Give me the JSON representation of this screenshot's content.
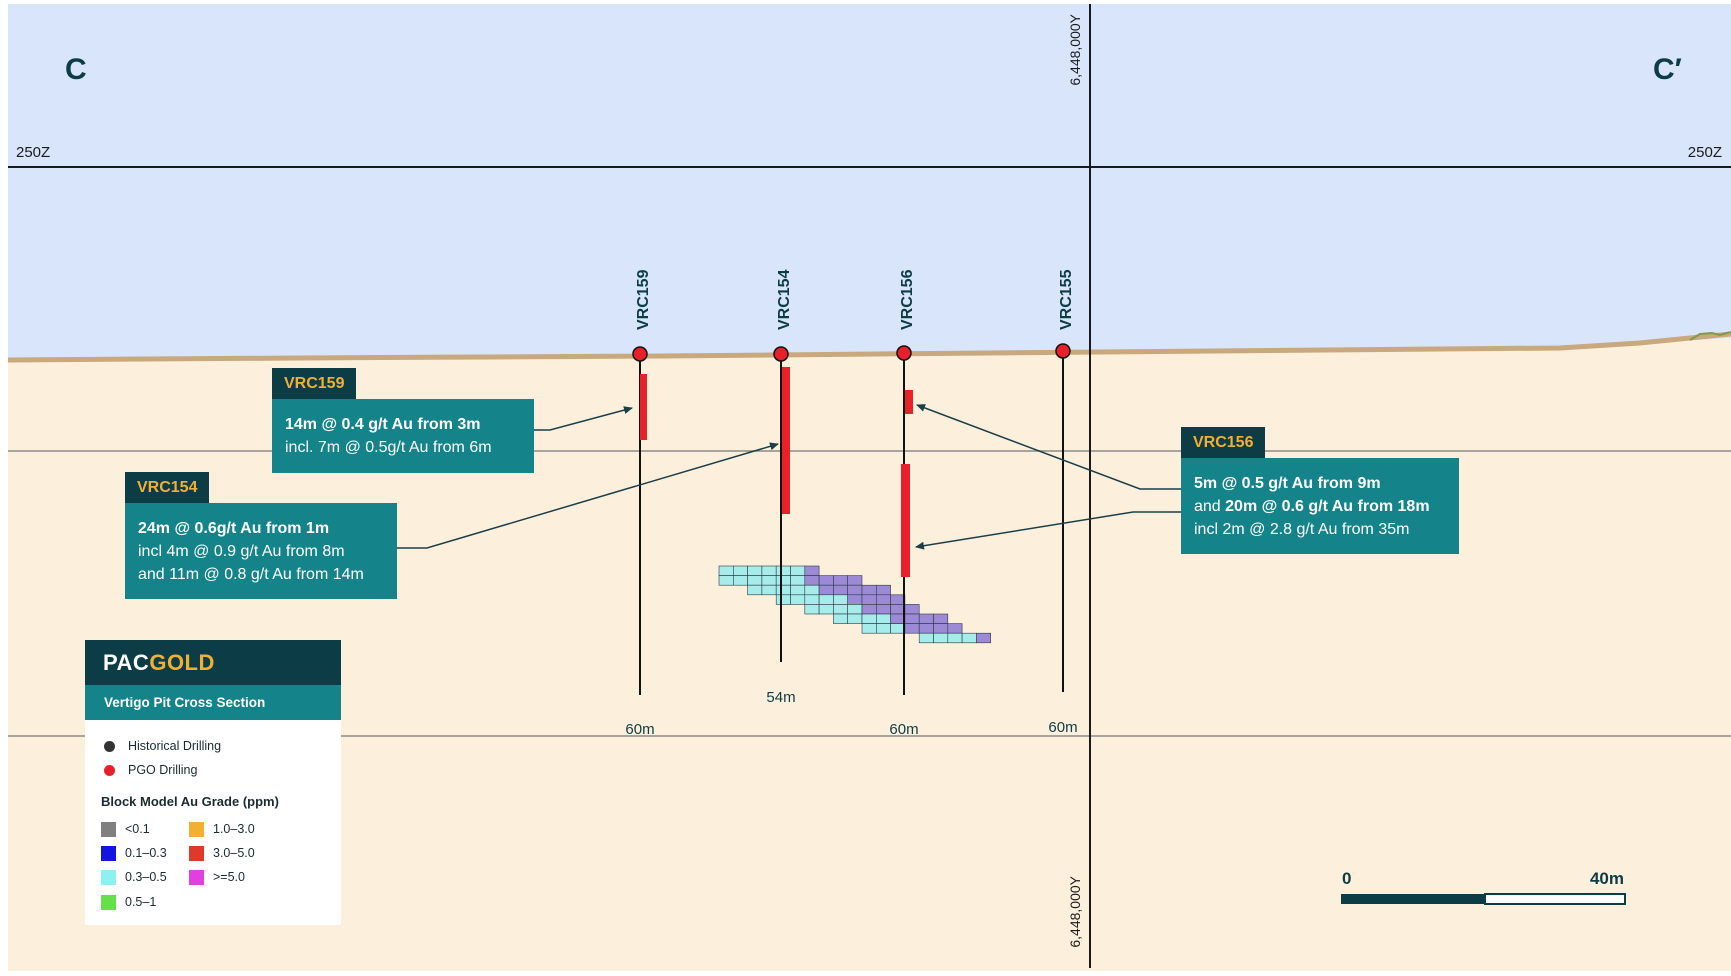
{
  "section": {
    "left_label": "C",
    "right_label": "C′",
    "rl_left": "250Z",
    "rl_right": "250Z",
    "northing_top": "6,448,000Y",
    "northing_bottom": "6,448,000Y"
  },
  "holes": [
    {
      "id": "VRC159",
      "type": "PGO Drilling",
      "depth_label": "60m"
    },
    {
      "id": "VRC154",
      "type": "PGO Drilling",
      "depth_label": "54m"
    },
    {
      "id": "VRC156",
      "type": "PGO Drilling",
      "depth_label": "60m"
    },
    {
      "id": "VRC155",
      "type": "PGO Drilling",
      "depth_label": "60m"
    }
  ],
  "callouts": {
    "vrc159": {
      "tag": "VRC159",
      "line1": "14m @ 0.4 g/t Au from 3m",
      "line2": "incl. 7m @ 0.5g/t Au from 6m"
    },
    "vrc154": {
      "tag": "VRC154",
      "line1": "24m @ 0.6g/t Au from 1m",
      "line2": "incl 4m @ 0.9 g/t Au from 8m",
      "line3": "and 11m @ 0.8 g/t Au from 14m"
    },
    "vrc156": {
      "tag": "VRC156",
      "line1": "5m @ 0.5 g/t Au from 9m",
      "line2_prefix": "and ",
      "line2_bold": "20m @ 0.6 g/t Au from 18m",
      "line3": "incl 2m @ 2.8 g/t Au from 35m"
    }
  },
  "legend": {
    "brand_a": "PAC",
    "brand_b": "GOLD",
    "subtitle": "Vertigo Pit Cross Section",
    "historical": "Historical Drilling",
    "pgo": "PGO Drilling",
    "block_title": "Block Model Au Grade (ppm)",
    "grades": [
      {
        "label": "<0.1",
        "color": "#808080"
      },
      {
        "label": "1.0–3.0",
        "color": "#f2b033"
      },
      {
        "label": "0.1–0.3",
        "color": "#1414e0"
      },
      {
        "label": "3.0–5.0",
        "color": "#e0392a"
      },
      {
        "label": "0.3–0.5",
        "color": "#8ef0f0"
      },
      {
        "label": ">=5.0",
        "color": "#e040e0"
      },
      {
        "label": "0.5–1",
        "color": "#66e04a"
      }
    ]
  },
  "scale_bar": {
    "start": "0",
    "end": "40m"
  },
  "colors": {
    "sky": "#d8e5fb",
    "ground": "#fcf0dc",
    "surface": "#c8a87c",
    "teal": "#14838a",
    "navy": "#0c3c45",
    "gold": "#f2b033",
    "intercept": "#e8202a",
    "block_cyan": "#a6ecea",
    "block_purple": "#9c8ad6"
  }
}
